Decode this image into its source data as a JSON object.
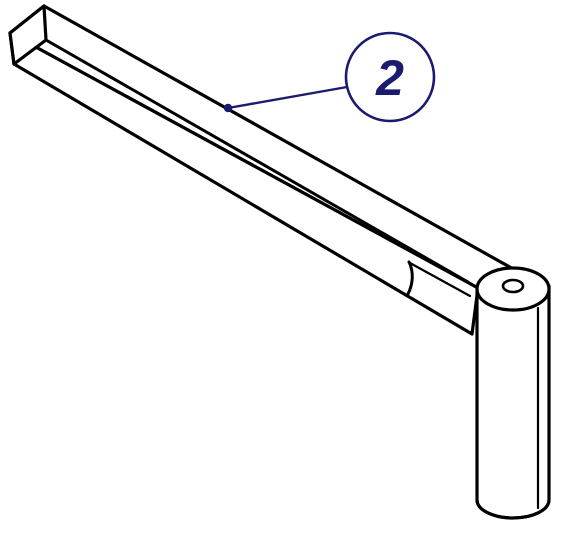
{
  "part_label": {
    "number": "2"
  },
  "colors": {
    "annotation": "#1a1a6e",
    "line": "#000000",
    "background": "#ffffff"
  }
}
